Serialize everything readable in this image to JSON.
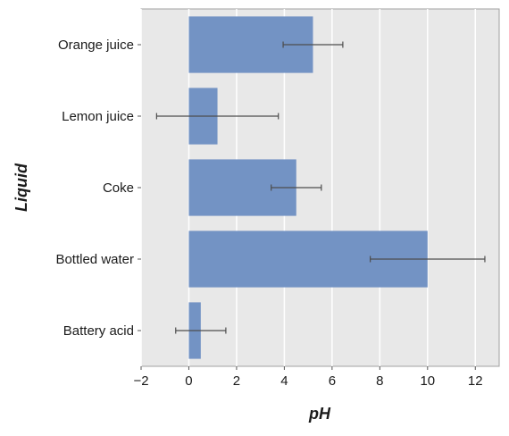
{
  "chart_data": {
    "type": "bar",
    "orientation": "horizontal",
    "categories": [
      "Orange juice",
      "Lemon juice",
      "Coke",
      "Bottled water",
      "Battery acid"
    ],
    "values": [
      5.2,
      1.2,
      4.5,
      10.0,
      0.5
    ],
    "error_low": [
      3.95,
      -1.35,
      3.45,
      7.6,
      -0.55
    ],
    "error_high": [
      6.45,
      3.75,
      5.55,
      12.4,
      1.55
    ],
    "xlabel": "pH",
    "ylabel": "Liquid",
    "xlim": [
      -2.0,
      13.0
    ],
    "xticks": [
      -2,
      0,
      2,
      4,
      6,
      8,
      10,
      12
    ],
    "xtick_labels": [
      "−2",
      "0",
      "2",
      "4",
      "6",
      "8",
      "10",
      "12"
    ],
    "grid": "vertical",
    "colors": {
      "bar": "#7393c4",
      "error_bar": "#4d4d4d",
      "plot_background": "#e8e8e8",
      "grid": "#ffffff"
    }
  }
}
